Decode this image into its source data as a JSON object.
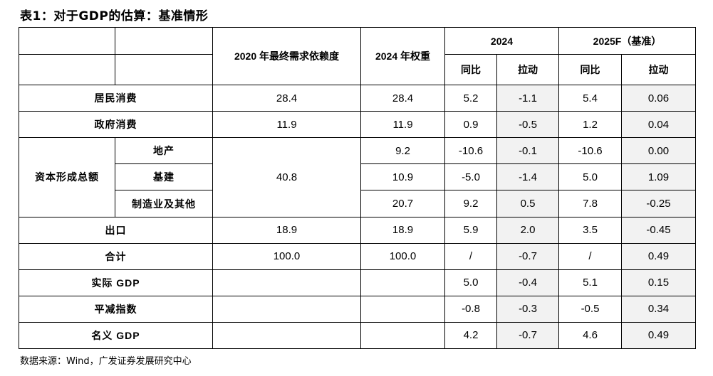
{
  "title": "表1：对于GDP的估算：基准情形",
  "header": {
    "col_dep": "2020 年最终需求依赖度",
    "col_weight": "2024 年权重",
    "year1": "2024",
    "year2": "2025F（基准）",
    "yoy": "同比",
    "pull": "拉动"
  },
  "rows": {
    "consumption": {
      "label": "居民消费",
      "dep": "28.4",
      "weight": "28.4",
      "yoy24": "5.2",
      "pull24": "-1.1",
      "yoy25": "5.4",
      "pull25": "0.06"
    },
    "gov": {
      "label": "政府消费",
      "dep": "11.9",
      "weight": "11.9",
      "yoy24": "0.9",
      "pull24": "-0.5",
      "yoy25": "1.2",
      "pull25": "0.04"
    },
    "capital": {
      "label": "资本形成总额",
      "dep": "40.8",
      "estate": {
        "label": "地产",
        "weight": "9.2",
        "yoy24": "-10.6",
        "pull24": "-0.1",
        "yoy25": "-10.6",
        "pull25": "0.00"
      },
      "infra": {
        "label": "基建",
        "weight": "10.9",
        "yoy24": "-5.0",
        "pull24": "-1.4",
        "yoy25": "5.0",
        "pull25": "1.09"
      },
      "manuf": {
        "label": "制造业及其他",
        "weight": "20.7",
        "yoy24": "9.2",
        "pull24": "0.5",
        "yoy25": "7.8",
        "pull25": "-0.25"
      }
    },
    "export": {
      "label": "出口",
      "dep": "18.9",
      "weight": "18.9",
      "yoy24": "5.9",
      "pull24": "2.0",
      "yoy25": "3.5",
      "pull25": "-0.45"
    },
    "total": {
      "label": "合计",
      "dep": "100.0",
      "weight": "100.0",
      "yoy24": "/",
      "pull24": "-0.7",
      "yoy25": "/",
      "pull25": "0.49"
    },
    "real_gdp": {
      "label": "实际 GDP",
      "yoy24": "5.0",
      "pull24": "-0.4",
      "yoy25": "5.1",
      "pull25": "0.15"
    },
    "deflator": {
      "label": "平减指数",
      "yoy24": "-0.8",
      "pull24": "-0.3",
      "yoy25": "-0.5",
      "pull25": "0.34"
    },
    "nominal_gdp": {
      "label": "名义 GDP",
      "yoy24": "4.2",
      "pull24": "-0.7",
      "yoy25": "4.6",
      "pull25": "0.49"
    }
  },
  "source": "数据来源：Wind，广发证券发展研究中心"
}
